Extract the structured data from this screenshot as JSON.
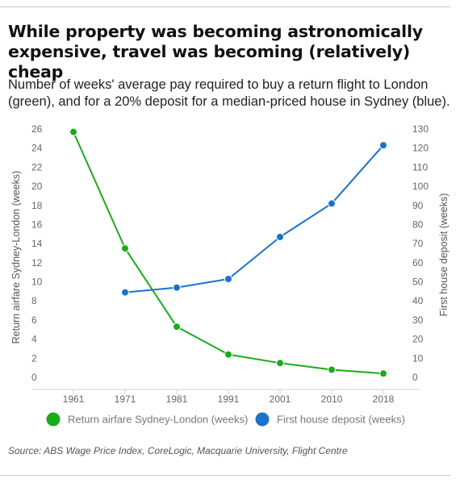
{
  "header": {
    "title": "While property was becoming astronomically expensive, travel was becoming (relatively) cheap",
    "subtitle": "Number of weeks' average pay required to buy a return flight to London (green), and for a 20% deposit for a median-priced house in Sydney (blue)."
  },
  "footer": {
    "source": "Source: ABS Wage Price Index, CoreLogic, Macquarie University, Flight Centre"
  },
  "chart_data": {
    "type": "line",
    "categories": [
      "1961",
      "1971",
      "1981",
      "1991",
      "2001",
      "2010",
      "2018"
    ],
    "ylabel_left": "Return airfare Sydney-London (weeks)",
    "ylabel_right": "First house deposit (weeks)",
    "ylim_left": [
      0,
      26
    ],
    "yticks_left": [
      0,
      2,
      4,
      6,
      8,
      10,
      12,
      14,
      16,
      18,
      20,
      22,
      24,
      26
    ],
    "ylim_right": [
      0,
      130
    ],
    "yticks_right": [
      0,
      10,
      20,
      30,
      40,
      50,
      60,
      70,
      80,
      90,
      100,
      110,
      120,
      130
    ],
    "grid": false,
    "legend_position": "bottom",
    "series": [
      {
        "name": "Return airfare Sydney-London (weeks)",
        "axis": "left",
        "color": "#1aab1a",
        "values": [
          25.7,
          13.5,
          5.3,
          2.4,
          1.5,
          0.8,
          0.4
        ]
      },
      {
        "name": "First house deposit (weeks)",
        "axis": "right",
        "color": "#1b73c9",
        "values": [
          null,
          44.5,
          47,
          51.5,
          73.5,
          91,
          121.5
        ]
      }
    ]
  }
}
